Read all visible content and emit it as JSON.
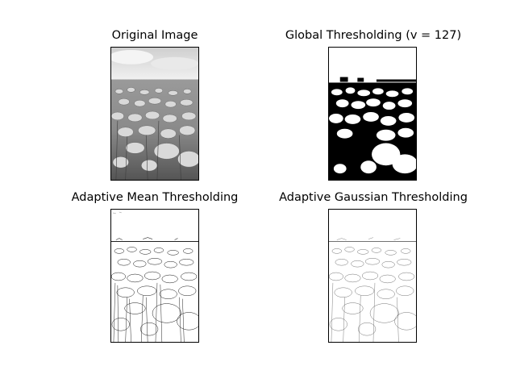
{
  "figure": {
    "panels": [
      {
        "id": "original",
        "title": "Original Image"
      },
      {
        "id": "global",
        "title": "Global Thresholding (v = 127)"
      },
      {
        "id": "adaptive-mean",
        "title": "Adaptive Mean Thresholding"
      },
      {
        "id": "adaptive-gaussian",
        "title": "Adaptive Gaussian Thresholding"
      }
    ]
  }
}
